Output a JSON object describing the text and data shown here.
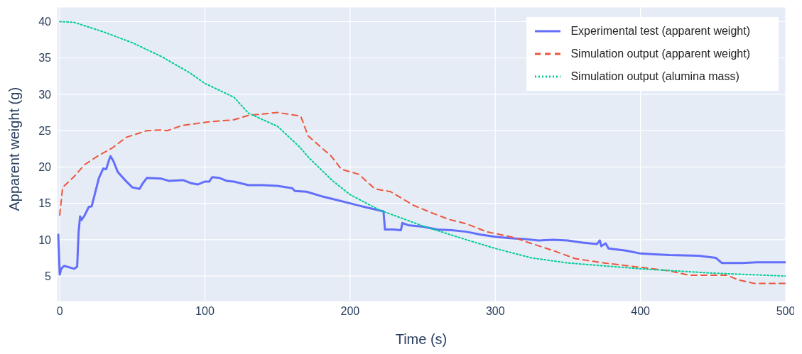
{
  "chart_data": {
    "type": "line",
    "xlabel": "Time (s)",
    "ylabel": "Apparent weight (g)",
    "xlim": [
      -2,
      500
    ],
    "xticks": [
      0,
      100,
      200,
      300,
      400,
      500
    ],
    "ylim": [
      1.5,
      42
    ],
    "yticks": [
      5,
      10,
      15,
      20,
      25,
      30,
      35,
      40
    ],
    "grid": true,
    "legend": "top right",
    "marker": "none",
    "series": [
      {
        "name": "Experimental test (apparent weight)",
        "color": "#636efa",
        "line_style": "solid",
        "x": [
          -1,
          0,
          1,
          3,
          10,
          12,
          13,
          14,
          15,
          17,
          20,
          22,
          27,
          30,
          32,
          34,
          35,
          37,
          40,
          45,
          50,
          55,
          57,
          60,
          70,
          75,
          85,
          90,
          95,
          100,
          103,
          105,
          110,
          115,
          120,
          130,
          140,
          150,
          160,
          162,
          170,
          180,
          190,
          200,
          210,
          223,
          224,
          230,
          235,
          236,
          240,
          250,
          260,
          270,
          280,
          290,
          300,
          310,
          320,
          330,
          340,
          350,
          360,
          370,
          372,
          373,
          376,
          378,
          390,
          400,
          410,
          420,
          440,
          452,
          456,
          470,
          480,
          490,
          500
        ],
        "values": [
          10.7,
          5.2,
          6,
          6.4,
          6,
          6.3,
          11,
          13.2,
          12.7,
          13.3,
          14.5,
          14.6,
          18.5,
          19.8,
          19.7,
          21,
          21.5,
          20.8,
          19.3,
          18.2,
          17.2,
          17,
          17.7,
          18.5,
          18.4,
          18.1,
          18.2,
          17.8,
          17.6,
          18,
          18,
          18.6,
          18.5,
          18.1,
          18,
          17.5,
          17.5,
          17.4,
          17.1,
          16.7,
          16.6,
          16,
          15.5,
          15,
          14.5,
          13.9,
          11.4,
          11.4,
          11.3,
          12.3,
          12,
          11.8,
          11.4,
          11.3,
          11.1,
          10.7,
          10.4,
          10.2,
          10.1,
          9.9,
          10,
          9.9,
          9.6,
          9.4,
          9.9,
          9.1,
          9.5,
          8.8,
          8.5,
          8.1,
          8,
          7.9,
          7.8,
          7.5,
          6.8,
          6.8,
          6.9,
          6.9,
          6.9
        ]
      },
      {
        "name": "Simulation output (apparent weight)",
        "color": "#ef553b",
        "line_style": "dashed",
        "x": [
          0,
          2,
          10,
          17,
          26,
          36,
          46,
          60,
          70,
          74,
          84,
          102,
          120,
          130,
          150,
          166,
          171,
          187,
          194,
          206,
          217,
          228,
          244,
          255,
          268,
          280,
          294,
          313,
          323,
          340,
          355,
          375,
          400,
          420,
          434,
          460,
          467,
          478,
          500
        ],
        "values": [
          13.4,
          17.2,
          18.7,
          20.3,
          21.5,
          22.6,
          24.1,
          25,
          25.1,
          25,
          25.7,
          26.2,
          26.5,
          27.1,
          27.5,
          27,
          24.3,
          21.5,
          19.7,
          19,
          17,
          16.6,
          14.7,
          13.8,
          12.8,
          12.2,
          11.1,
          10.3,
          9.6,
          8.5,
          7.4,
          6.8,
          6.2,
          5.7,
          5.1,
          5.1,
          4.5,
          4,
          4
        ]
      },
      {
        "name": "Simulation output (alumina mass)",
        "color": "#00cc96",
        "line_style": "dotted",
        "x": [
          0,
          10,
          30,
          50,
          70,
          90,
          100,
          120,
          130,
          150,
          165,
          172,
          188,
          200,
          220,
          250,
          280,
          300,
          325,
          350,
          400,
          450,
          500
        ],
        "values": [
          40,
          39.9,
          38.6,
          37.1,
          35.2,
          32.9,
          31.5,
          29.6,
          27.4,
          25.6,
          22.8,
          21.2,
          18.1,
          16.2,
          14.1,
          11.9,
          10,
          8.8,
          7.5,
          6.8,
          6,
          5.4,
          5
        ]
      }
    ]
  }
}
